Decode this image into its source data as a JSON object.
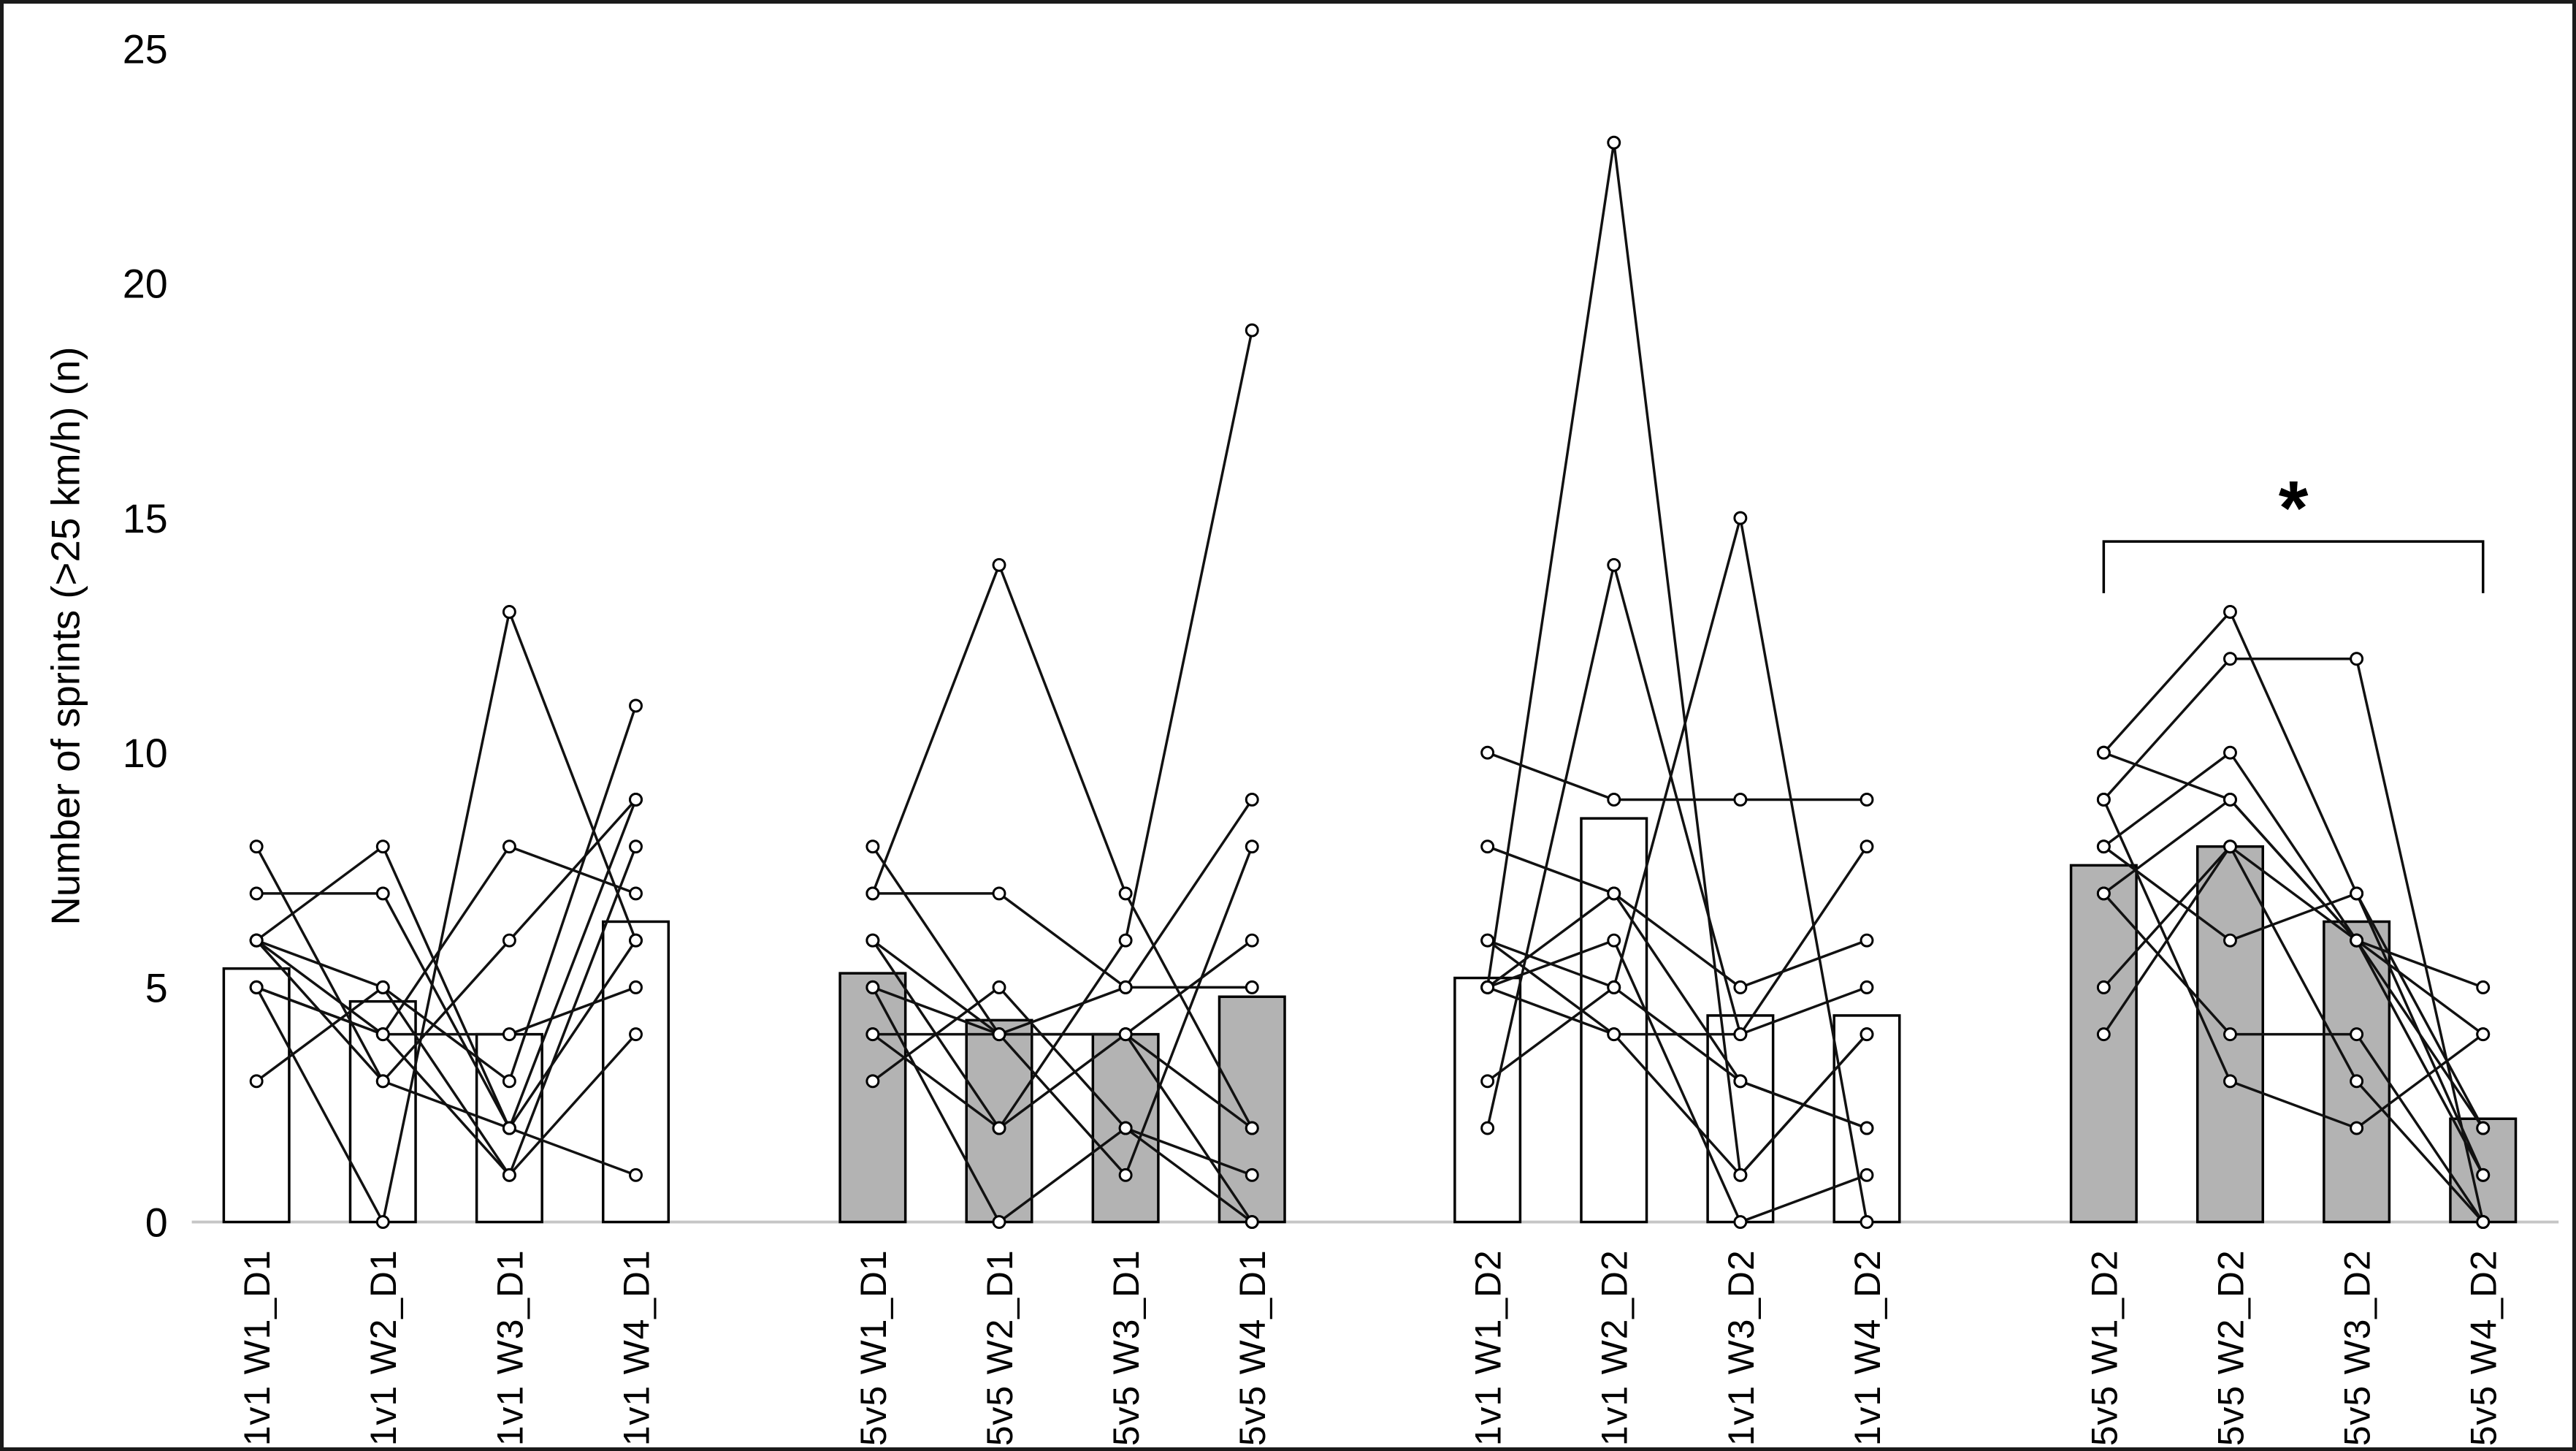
{
  "chart_data": {
    "type": "bar",
    "title": "",
    "ylabel": "Number of sprints (>25 km/h) (n)",
    "xlabel": "",
    "ylim": [
      0,
      25
    ],
    "yticks": [
      0,
      5,
      10,
      15,
      20,
      25
    ],
    "grid": false,
    "legend": "none",
    "overlay": "individual athlete lines with open-circle markers",
    "colors": {
      "bar_fill_1v1": "#ffffff",
      "bar_fill_5v5": "#b3b3b3",
      "bar_stroke": "#000000",
      "series_line": "#111111",
      "marker_fill": "#ffffff",
      "marker_stroke": "#000000",
      "baseline": "#c6c6c6",
      "text": "#000000",
      "frame": "#1a1a1a"
    },
    "groups": [
      {
        "id": "1v1_D1",
        "fill_key": "bar_fill_1v1",
        "categories": [
          "1v1 W1_D1",
          "1v1 W2_D1",
          "1v1 W3_D1",
          "1v1 W4_D1"
        ],
        "bar_means": [
          5.4,
          4.7,
          4.0,
          6.4
        ],
        "athletes": [
          [
            8,
            3,
            6,
            9
          ],
          [
            7,
            7,
            2,
            9
          ],
          [
            6,
            8,
            2,
            1
          ],
          [
            5,
            0,
            13,
            6
          ],
          [
            6,
            5,
            3,
            11
          ],
          [
            5,
            4,
            4,
            5
          ],
          [
            3,
            5,
            1,
            4
          ],
          [
            6,
            4,
            8,
            7
          ],
          [
            5,
            4,
            1,
            8
          ],
          [
            6,
            3,
            2,
            6
          ]
        ]
      },
      {
        "id": "5v5_D1",
        "fill_key": "bar_fill_5v5",
        "categories": [
          "5v5 W1_D1",
          "5v5 W2_D1",
          "5v5 W3_D1",
          "5v5 W4_D1"
        ],
        "bar_means": [
          5.3,
          4.3,
          4.0,
          4.8
        ],
        "athletes": [
          [
            7,
            14,
            7,
            2
          ],
          [
            7,
            7,
            5,
            5
          ],
          [
            8,
            4,
            5,
            9
          ],
          [
            6,
            2,
            6,
            19
          ],
          [
            6,
            4,
            4,
            6
          ],
          [
            5,
            4,
            1,
            8
          ],
          [
            5,
            0,
            2,
            1
          ],
          [
            4,
            4,
            4,
            0
          ],
          [
            4,
            2,
            4,
            2
          ],
          [
            3,
            5,
            2,
            0
          ]
        ]
      },
      {
        "id": "1v1_D2",
        "fill_key": "bar_fill_1v1",
        "categories": [
          "1v1 W1_D2",
          "1v1 W2_D2",
          "1v1 W3_D2",
          "1v1 W4_D2"
        ],
        "bar_means": [
          5.2,
          8.6,
          4.4,
          4.4
        ],
        "athletes": [
          [
            5,
            23,
            1,
            4
          ],
          [
            2,
            14,
            4,
            8
          ],
          [
            10,
            9,
            9,
            9
          ],
          [
            8,
            7,
            5,
            6
          ],
          [
            6,
            5,
            15,
            0
          ],
          [
            5,
            4,
            4,
            5
          ],
          [
            3,
            5,
            3,
            2
          ],
          [
            5,
            6,
            0,
            1
          ],
          [
            6,
            4,
            1,
            4
          ],
          [
            5,
            7,
            3,
            2
          ]
        ]
      },
      {
        "id": "5v5_D2",
        "fill_key": "bar_fill_5v5",
        "categories": [
          "5v5 W1_D2",
          "5v5 W2_D2",
          "5v5 W3_D2",
          "5v5 W4_D2"
        ],
        "bar_means": [
          7.6,
          8.0,
          6.4,
          2.2
        ],
        "athletes": [
          [
            10,
            13,
            7,
            1
          ],
          [
            9,
            12,
            12,
            0
          ],
          [
            8,
            10,
            6,
            5
          ],
          [
            7,
            9,
            6,
            2
          ],
          [
            5,
            8,
            3,
            0
          ],
          [
            4,
            8,
            6,
            4
          ],
          [
            8,
            6,
            7,
            2
          ],
          [
            10,
            9,
            6,
            1
          ],
          [
            7,
            4,
            4,
            0
          ],
          [
            9,
            3,
            2,
            4
          ]
        ]
      }
    ],
    "significance": {
      "group_index": 3,
      "from_category": "5v5 W1_D2",
      "to_category": "5v5 W4_D2",
      "label": "*",
      "bracket_y_value": 14.5,
      "bracket_leg_drop": 1.1
    }
  }
}
